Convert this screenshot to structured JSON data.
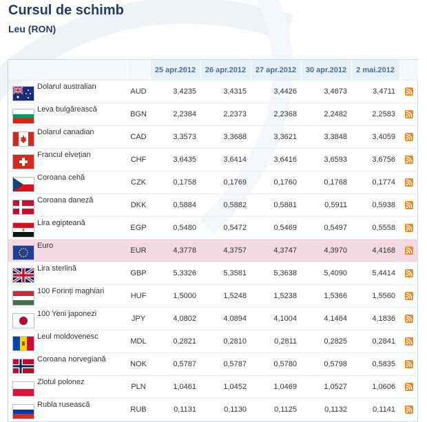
{
  "page": {
    "title": "Cursul de schimb",
    "subtitle": "Leu (RON)"
  },
  "table": {
    "dates": [
      "25 apr.2012",
      "26 apr.2012",
      "27 apr.2012",
      "30 apr.2012",
      "2 mai.2012"
    ],
    "rows": [
      {
        "flag": "australia-flag-icon",
        "name": "Dolarul australian",
        "code": "AUD",
        "values": [
          "3,4235",
          "3,4315",
          "3,4426",
          "3,4673",
          "3,4711"
        ]
      },
      {
        "flag": "bulgaria-flag-icon",
        "name": "Leva bulgărească",
        "code": "BGN",
        "values": [
          "2,2384",
          "2,2373",
          "2,2368",
          "2,2482",
          "2,2583"
        ]
      },
      {
        "flag": "canada-flag-icon",
        "name": "Dolarul canadian",
        "code": "CAD",
        "values": [
          "3,3573",
          "3,3688",
          "3,3621",
          "3,3848",
          "3,4059"
        ]
      },
      {
        "flag": "switzerland-flag-icon",
        "name": "Francul elvețian",
        "code": "CHF",
        "values": [
          "3,6435",
          "3,6414",
          "3,6416",
          "3,6593",
          "3,6756"
        ]
      },
      {
        "flag": "czech-flag-icon",
        "name": "Coroana cehă",
        "code": "CZK",
        "values": [
          "0,1758",
          "0,1769",
          "0,1760",
          "0,1768",
          "0,1774"
        ]
      },
      {
        "flag": "denmark-flag-icon",
        "name": "Coroana daneză",
        "code": "DKK",
        "values": [
          "0,5884",
          "0,5882",
          "0,5881",
          "0,5911",
          "0,5938"
        ]
      },
      {
        "flag": "egypt-flag-icon",
        "name": "Lira egipteană",
        "code": "EGP",
        "values": [
          "0,5480",
          "0,5472",
          "0,5469",
          "0,5497",
          "0,5558"
        ]
      },
      {
        "flag": "eu-flag-icon",
        "name": "Euro",
        "code": "EUR",
        "values": [
          "4,3778",
          "4,3757",
          "4,3747",
          "4,3970",
          "4,4168"
        ],
        "highlight": true
      },
      {
        "flag": "uk-flag-icon",
        "name": "Lira sterlină",
        "code": "GBP",
        "values": [
          "5,3326",
          "5,3581",
          "5,3638",
          "5,4090",
          "5,4414"
        ]
      },
      {
        "flag": "hungary-flag-icon",
        "name": "100 Forinți maghiari",
        "code": "HUF",
        "values": [
          "1,5000",
          "1,5248",
          "1,5238",
          "1,5366",
          "1,5560"
        ]
      },
      {
        "flag": "japan-flag-icon",
        "name": "100 Yeni japonezi",
        "code": "JPY",
        "values": [
          "4,0802",
          "4,0894",
          "4,1004",
          "4,1464",
          "4,1836"
        ]
      },
      {
        "flag": "moldova-flag-icon",
        "name": "Leul moldovenesc",
        "code": "MDL",
        "values": [
          "0,2821",
          "0,2810",
          "0,2811",
          "0,2825",
          "0,2841"
        ]
      },
      {
        "flag": "norway-flag-icon",
        "name": "Coroana norvegiană",
        "code": "NOK",
        "values": [
          "0,5787",
          "0,5787",
          "0,5780",
          "0,5798",
          "0,5835"
        ]
      },
      {
        "flag": "poland-flag-icon",
        "name": "Zlotul polonez",
        "code": "PLN",
        "values": [
          "1,0461",
          "1,0452",
          "1,0469",
          "1,0527",
          "1,0606"
        ]
      },
      {
        "flag": "russia-flag-icon",
        "name": "Rubla rusească",
        "code": "RUB",
        "values": [
          "0,1131",
          "0,1130",
          "0,1125",
          "0,1132",
          "0,1141"
        ]
      }
    ]
  },
  "colors": {
    "title": "#1f3d66",
    "header_bg": "#e8f0f7",
    "header_text": "#4a6f95",
    "highlight_row": "#f3d9e1",
    "rss": "#f08a24"
  }
}
